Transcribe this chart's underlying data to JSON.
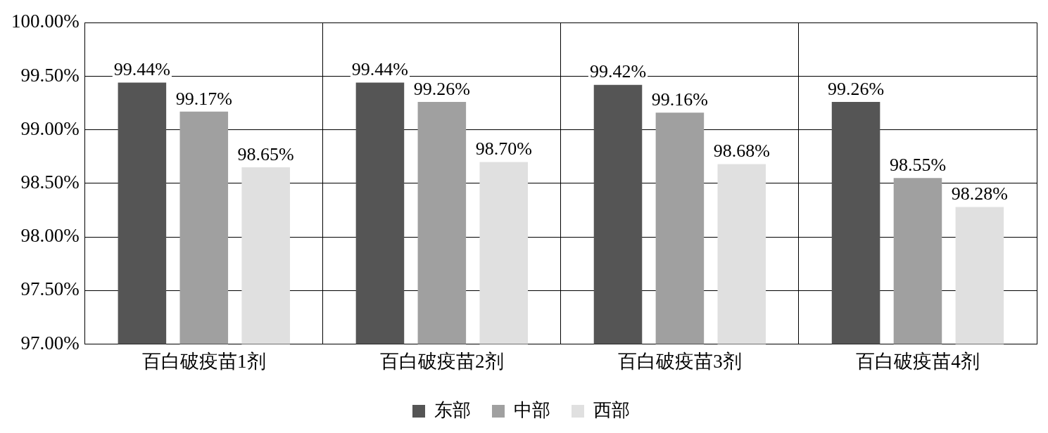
{
  "chart_data": {
    "type": "bar",
    "categories": [
      "百白破疫苗1剂",
      "百白破疫苗2剂",
      "百白破疫苗3剂",
      "百白破疫苗4剂"
    ],
    "series": [
      {
        "name": "东部",
        "color": "#555555",
        "values": [
          99.44,
          99.44,
          99.42,
          99.26
        ],
        "value_labels": [
          "99.44%",
          "99.44%",
          "99.42%",
          "99.26%"
        ]
      },
      {
        "name": "中部",
        "color": "#a0a0a0",
        "values": [
          99.17,
          99.26,
          99.16,
          98.55
        ],
        "value_labels": [
          "99.17%",
          "99.26%",
          "99.16%",
          "98.55%"
        ]
      },
      {
        "name": "西部",
        "color": "#e0e0e0",
        "values": [
          98.65,
          98.7,
          98.68,
          98.28
        ],
        "value_labels": [
          "98.65%",
          "98.70%",
          "98.68%",
          "98.28%"
        ]
      }
    ],
    "ylim": [
      97,
      100
    ],
    "yticks": [
      {
        "value": 97,
        "label": "97.00%"
      },
      {
        "value": 97.5,
        "label": "97.50%"
      },
      {
        "value": 98,
        "label": "98.00%"
      },
      {
        "value": 98.5,
        "label": "98.50%"
      },
      {
        "value": 99,
        "label": "99.00%"
      },
      {
        "value": 99.5,
        "label": "99.50%"
      },
      {
        "value": 100,
        "label": "100.00%"
      }
    ],
    "grid": true,
    "legend": "bottom"
  }
}
